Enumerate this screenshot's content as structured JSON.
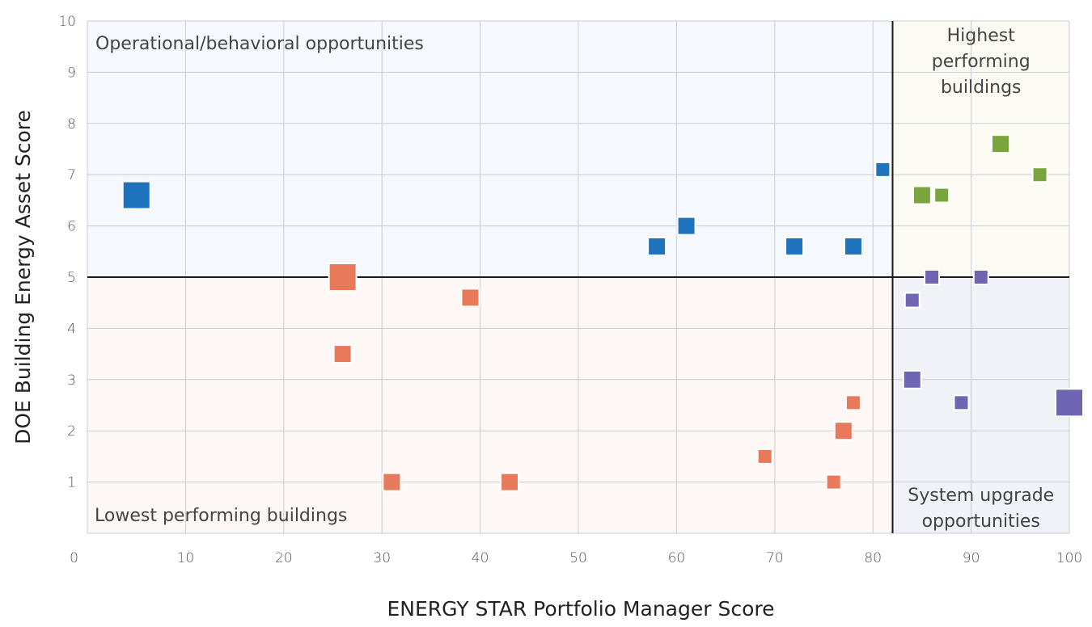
{
  "chart_data": {
    "type": "scatter",
    "xlabel": "ENERGY STAR Portfolio Manager Score",
    "ylabel": "DOE Building Energy Asset Score",
    "xlim": [
      0,
      100
    ],
    "ylim": [
      0,
      10
    ],
    "x_ticks": [
      0,
      10,
      20,
      30,
      40,
      50,
      60,
      70,
      80,
      90,
      100
    ],
    "y_ticks": [
      1,
      2,
      3,
      4,
      5,
      6,
      7,
      8,
      9,
      10
    ],
    "grid": true,
    "thresholds": {
      "x": 82,
      "y": 5
    },
    "quadrant_labels": {
      "top_left": "Operational/behavioral opportunities",
      "top_right": [
        "Highest",
        "performing",
        "buildings"
      ],
      "bottom_left": "Lowest performing buildings",
      "bottom_right": [
        "System upgrade",
        "opportunities"
      ]
    },
    "colors": {
      "top_left_bg": "#f5f9fd",
      "top_right_bg": "#fbfbf3",
      "bottom_left_bg": "#fdf8f5",
      "bottom_right_bg": "#f1f2f8",
      "blue": "#1f73bd",
      "green": "#7aa53d",
      "orange": "#e8795a",
      "purple": "#7065b2"
    },
    "series": [
      {
        "color_key": "blue",
        "points": [
          {
            "x": 5,
            "y": 6.6,
            "size": "large"
          },
          {
            "x": 58,
            "y": 5.6,
            "size": "medium"
          },
          {
            "x": 61,
            "y": 6.0,
            "size": "medium"
          },
          {
            "x": 72,
            "y": 5.6,
            "size": "medium"
          },
          {
            "x": 78,
            "y": 5.6,
            "size": "medium"
          },
          {
            "x": 81,
            "y": 7.1,
            "size": "small"
          }
        ]
      },
      {
        "color_key": "green",
        "points": [
          {
            "x": 85,
            "y": 6.6,
            "size": "medium"
          },
          {
            "x": 87,
            "y": 6.6,
            "size": "small"
          },
          {
            "x": 93,
            "y": 7.6,
            "size": "medium"
          },
          {
            "x": 97,
            "y": 7.0,
            "size": "small"
          }
        ]
      },
      {
        "color_key": "orange",
        "points": [
          {
            "x": 26,
            "y": 5.0,
            "size": "large"
          },
          {
            "x": 26,
            "y": 3.5,
            "size": "medium"
          },
          {
            "x": 31,
            "y": 1.0,
            "size": "medium"
          },
          {
            "x": 39,
            "y": 4.6,
            "size": "medium"
          },
          {
            "x": 43,
            "y": 1.0,
            "size": "medium"
          },
          {
            "x": 69,
            "y": 1.5,
            "size": "small"
          },
          {
            "x": 76,
            "y": 1.0,
            "size": "small"
          },
          {
            "x": 77,
            "y": 2.0,
            "size": "medium"
          },
          {
            "x": 78,
            "y": 2.55,
            "size": "small"
          }
        ]
      },
      {
        "color_key": "purple",
        "points": [
          {
            "x": 84,
            "y": 4.55,
            "size": "small"
          },
          {
            "x": 84,
            "y": 3.0,
            "size": "medium"
          },
          {
            "x": 86,
            "y": 5.0,
            "size": "small"
          },
          {
            "x": 89,
            "y": 2.55,
            "size": "small"
          },
          {
            "x": 91,
            "y": 5.0,
            "size": "small"
          },
          {
            "x": 100,
            "y": 2.55,
            "size": "large"
          }
        ]
      }
    ]
  }
}
